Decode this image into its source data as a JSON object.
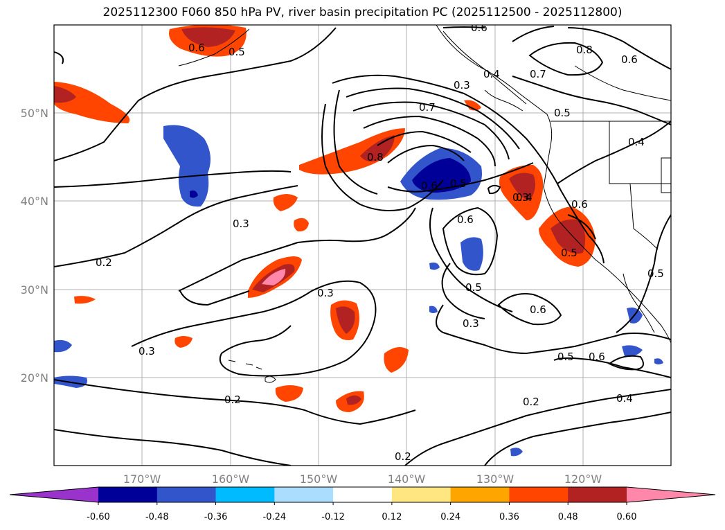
{
  "title": "2025112300 F060 850 hPa PV, river basin precipitation PC (2025112500 - 2025112800)",
  "map": {
    "lon_range": [
      -180,
      -110
    ],
    "lat_range": [
      10,
      60
    ],
    "lon_ticks": [
      "170°W",
      "160°W",
      "150°W",
      "140°W",
      "130°W",
      "120°W"
    ],
    "lat_ticks": [
      "50°N",
      "40°N",
      "30°N",
      "20°N"
    ],
    "contour_labels": [
      "0.6",
      "0.5",
      "0.8",
      "0.7",
      "0.6",
      "0.3",
      "0.4",
      "0.5",
      "0.7",
      "0.8",
      "0.4",
      "0.6",
      "0.5",
      "0.3",
      "0.2",
      "0.3",
      "0.6",
      "0.5",
      "0.3",
      "0.6",
      "0.3",
      "0.6",
      "0.4",
      "0.6",
      "0.5",
      "0.5",
      "0.3",
      "0.2",
      "0.2",
      "0.5",
      "0.6",
      "0.4",
      "0.2"
    ]
  },
  "colorbar": {
    "levels": [
      "-0.60",
      "-0.48",
      "-0.36",
      "-0.24",
      "-0.12",
      "0.12",
      "0.24",
      "0.36",
      "0.48",
      "0.60"
    ],
    "colors": [
      "#9933cc",
      "#000099",
      "#3355cc",
      "#00bbff",
      "#aaddff",
      "#ffffff",
      "#ffe680",
      "#ffa500",
      "#ff4500",
      "#b22222",
      "#ff88aa"
    ]
  }
}
